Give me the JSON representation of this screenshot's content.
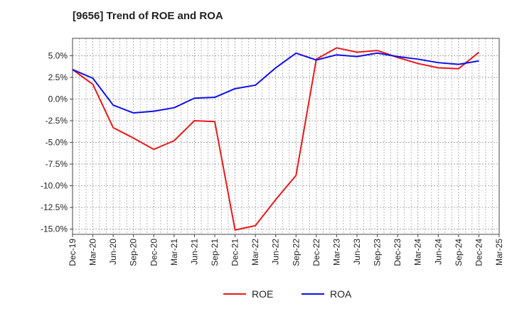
{
  "title": "[9656]  Trend of ROE and ROA",
  "chart_data": {
    "type": "line",
    "title": "[9656]  Trend of ROE and ROA",
    "xlabel": "",
    "ylabel": "",
    "categories": [
      "Dec-19",
      "Mar-20",
      "Jun-20",
      "Sep-20",
      "Dec-20",
      "Mar-21",
      "Jun-21",
      "Sep-21",
      "Dec-21",
      "Mar-22",
      "Jun-22",
      "Sep-22",
      "Dec-22",
      "Mar-23",
      "Jun-23",
      "Sep-23",
      "Dec-23",
      "Mar-24",
      "Jun-24",
      "Sep-24",
      "Dec-24",
      "Mar-25"
    ],
    "y_tick_labels": [
      "5.0%",
      "2.5%",
      "0.0%",
      "-2.5%",
      "-5.0%",
      "-7.5%",
      "-10.0%",
      "-12.5%",
      "-15.0%"
    ],
    "y_ticks": [
      5.0,
      2.5,
      0.0,
      -2.5,
      -5.0,
      -7.5,
      -10.0,
      -12.5,
      -15.0
    ],
    "ylim": [
      -15.6,
      7.0
    ],
    "grid": true,
    "legend_position": "bottom-center",
    "series": [
      {
        "name": "ROE",
        "color": "#e8191b",
        "values": [
          3.4,
          1.7,
          -3.3,
          -4.5,
          -5.8,
          -4.8,
          -2.5,
          -2.6,
          -15.1,
          -14.6,
          -11.6,
          -8.8,
          4.6,
          5.9,
          5.4,
          5.6,
          4.8,
          4.1,
          3.6,
          3.5,
          5.4,
          null
        ]
      },
      {
        "name": "ROA",
        "color": "#1010e8",
        "values": [
          3.4,
          2.4,
          -0.7,
          -1.6,
          -1.4,
          -1.0,
          0.1,
          0.2,
          1.2,
          1.6,
          3.6,
          5.3,
          4.5,
          5.1,
          4.9,
          5.3,
          4.9,
          4.6,
          4.2,
          4.0,
          4.4,
          null
        ]
      }
    ]
  }
}
